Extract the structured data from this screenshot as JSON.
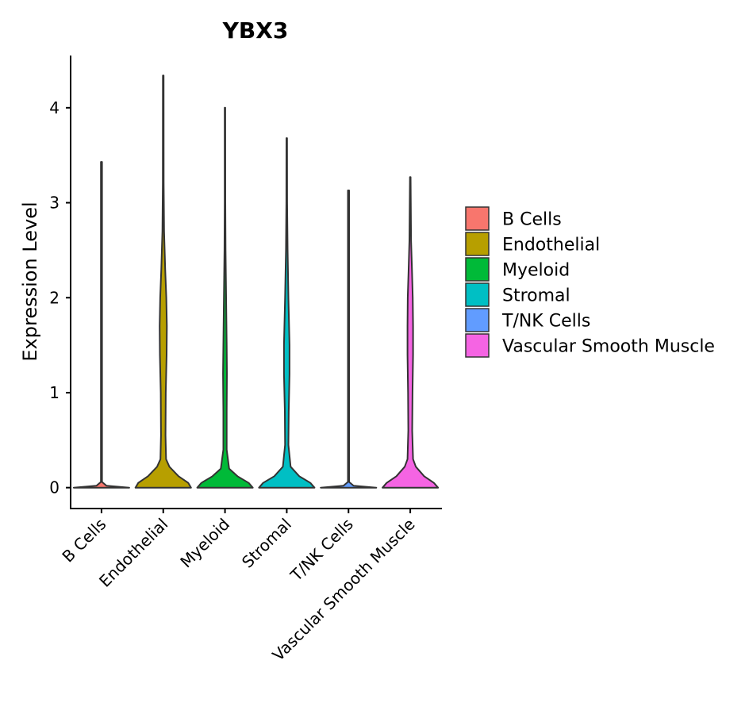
{
  "chart_data": {
    "type": "violin",
    "title": "YBX3",
    "xlabel": "",
    "ylabel": "Expression Level",
    "ylim": [
      -0.22,
      4.55
    ],
    "yticks": [
      0,
      1,
      2,
      3,
      4
    ],
    "categories": [
      "B Cells",
      "Endothelial",
      "Myeloid",
      "Stromal",
      "T/NK Cells",
      "Vascular Smooth Muscle"
    ],
    "colors": [
      "#F8766D",
      "#B79F00",
      "#00BA38",
      "#00BFC4",
      "#619CFF",
      "#F564E3"
    ],
    "series": [
      {
        "name": "B Cells",
        "max": 3.43,
        "density": [
          [
            0,
            1.0
          ],
          [
            0.02,
            0.18
          ],
          [
            0.06,
            0.02
          ],
          [
            0.2,
            0.02
          ],
          [
            3.43,
            0.02
          ]
        ]
      },
      {
        "name": "Endothelial",
        "max": 4.34,
        "density": [
          [
            0,
            1.0
          ],
          [
            0.05,
            0.9
          ],
          [
            0.12,
            0.55
          ],
          [
            0.22,
            0.22
          ],
          [
            0.3,
            0.1
          ],
          [
            0.55,
            0.08
          ],
          [
            1.0,
            0.09
          ],
          [
            1.4,
            0.12
          ],
          [
            1.7,
            0.13
          ],
          [
            2.0,
            0.11
          ],
          [
            2.3,
            0.07
          ],
          [
            2.7,
            0.03
          ],
          [
            3.2,
            0.015
          ],
          [
            4.34,
            0.012
          ]
        ]
      },
      {
        "name": "Myeloid",
        "max": 4.0,
        "density": [
          [
            0,
            1.0
          ],
          [
            0.05,
            0.85
          ],
          [
            0.12,
            0.45
          ],
          [
            0.2,
            0.15
          ],
          [
            0.4,
            0.06
          ],
          [
            0.8,
            0.06
          ],
          [
            1.2,
            0.07
          ],
          [
            1.5,
            0.06
          ],
          [
            2.0,
            0.04
          ],
          [
            2.5,
            0.02
          ],
          [
            3.0,
            0.012
          ],
          [
            4.0,
            0.01
          ]
        ]
      },
      {
        "name": "Stromal",
        "max": 3.68,
        "density": [
          [
            0,
            1.0
          ],
          [
            0.05,
            0.85
          ],
          [
            0.12,
            0.45
          ],
          [
            0.22,
            0.14
          ],
          [
            0.45,
            0.06
          ],
          [
            0.8,
            0.07
          ],
          [
            1.2,
            0.1
          ],
          [
            1.5,
            0.1
          ],
          [
            2.0,
            0.06
          ],
          [
            2.5,
            0.03
          ],
          [
            3.0,
            0.015
          ],
          [
            3.68,
            0.012
          ]
        ]
      },
      {
        "name": "T/NK Cells",
        "max": 3.13,
        "density": [
          [
            0,
            1.0
          ],
          [
            0.02,
            0.18
          ],
          [
            0.06,
            0.02
          ],
          [
            0.2,
            0.02
          ],
          [
            3.13,
            0.02
          ]
        ]
      },
      {
        "name": "Vascular Smooth Muscle",
        "max": 3.27,
        "density": [
          [
            0,
            1.0
          ],
          [
            0.05,
            0.85
          ],
          [
            0.12,
            0.5
          ],
          [
            0.22,
            0.2
          ],
          [
            0.3,
            0.1
          ],
          [
            0.6,
            0.07
          ],
          [
            1.0,
            0.08
          ],
          [
            1.4,
            0.1
          ],
          [
            1.7,
            0.1
          ],
          [
            2.0,
            0.09
          ],
          [
            2.3,
            0.06
          ],
          [
            2.6,
            0.03
          ],
          [
            3.27,
            0.012
          ]
        ]
      }
    ],
    "legend": {
      "position": "right",
      "items": [
        "B Cells",
        "Endothelial",
        "Myeloid",
        "Stromal",
        "T/NK Cells",
        "Vascular Smooth Muscle"
      ]
    },
    "grid": false
  }
}
